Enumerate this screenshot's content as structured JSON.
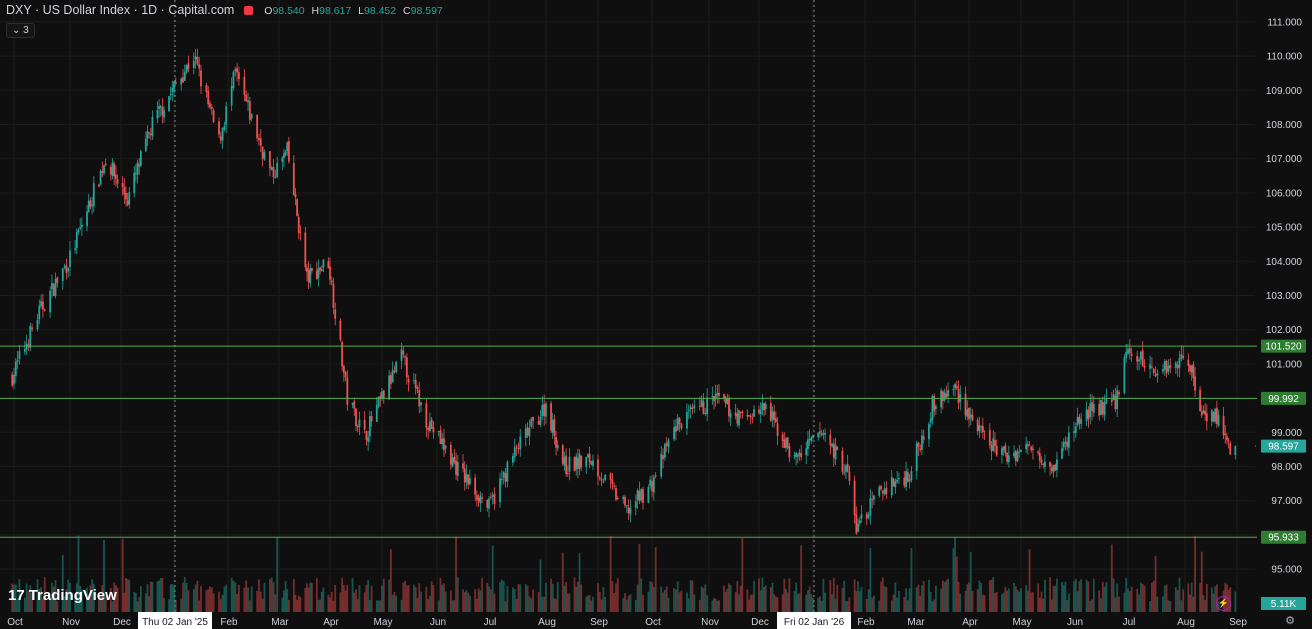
{
  "header": {
    "title": "DXY · US Dollar Index · 1D · Capital.com",
    "ohlc": [
      {
        "k": "O",
        "v": "98.540"
      },
      {
        "k": "H",
        "v": "98.617"
      },
      {
        "k": "L",
        "v": "98.452"
      },
      {
        "k": "C",
        "v": "98.597"
      }
    ],
    "indicator_badge": "3"
  },
  "branding": {
    "logo_text": "TradingView",
    "logo_mark": "17"
  },
  "colors": {
    "background": "#0f0f0f",
    "grid": "#1c1c1c",
    "up": "#26a69a",
    "down": "#ef5350",
    "level_line": "#4caf50",
    "axis_text": "#d1d4dc"
  },
  "icons": {
    "settings": "gear-icon",
    "alert": "bolt-icon"
  },
  "chart_data": {
    "type": "candlestick",
    "ylim": [
      94.3,
      111.4
    ],
    "y_ticks": [
      "95.000",
      "96.000",
      "97.000",
      "98.000",
      "99.000",
      "100.000",
      "101.000",
      "102.000",
      "103.000",
      "104.000",
      "105.000",
      "106.000",
      "107.000",
      "108.000",
      "109.000",
      "110.000",
      "111.000"
    ],
    "x_ticks": [
      "Oct",
      "Nov",
      "Dec",
      "Thu 02 Jan '25",
      "Feb",
      "Mar",
      "Apr",
      "May",
      "Jun",
      "Jul",
      "Aug",
      "Sep",
      "Oct",
      "Nov",
      "Dec",
      "Fri 02 Jan '26",
      "Feb",
      "Mar",
      "Apr",
      "May",
      "Jun",
      "Jul",
      "Aug",
      "Sep"
    ],
    "highlighted_x_ticks": [
      "Thu 02 Jan '25",
      "Fri 02 Jan '26"
    ],
    "last_price": "98.597",
    "volume_last": "5.11K",
    "horizontal_levels": [
      {
        "value": 101.52,
        "label": "101.520"
      },
      {
        "value": 99.992,
        "label": "99.992"
      },
      {
        "value": 95.933,
        "label": "95.933"
      }
    ],
    "close_path": [
      {
        "date": "2024-09-28",
        "close": 100.4
      },
      {
        "date": "2024-10-15",
        "close": 102.5
      },
      {
        "date": "2024-11-01",
        "close": 104.1
      },
      {
        "date": "2024-11-22",
        "close": 107.0
      },
      {
        "date": "2024-12-05",
        "close": 105.8
      },
      {
        "date": "2024-12-20",
        "close": 108.0
      },
      {
        "date": "2025-01-13",
        "close": 110.0
      },
      {
        "date": "2025-01-27",
        "close": 107.5
      },
      {
        "date": "2025-02-05",
        "close": 109.5
      },
      {
        "date": "2025-02-25",
        "close": 106.5
      },
      {
        "date": "2025-03-06",
        "close": 107.2
      },
      {
        "date": "2025-03-18",
        "close": 103.5
      },
      {
        "date": "2025-03-31",
        "close": 104.0
      },
      {
        "date": "2025-04-11",
        "close": 100.0
      },
      {
        "date": "2025-04-21",
        "close": 98.9
      },
      {
        "date": "2025-05-12",
        "close": 101.2
      },
      {
        "date": "2025-05-26",
        "close": 99.4
      },
      {
        "date": "2025-06-12",
        "close": 98.0
      },
      {
        "date": "2025-07-01",
        "close": 96.8
      },
      {
        "date": "2025-07-16",
        "close": 98.5
      },
      {
        "date": "2025-08-01",
        "close": 99.8
      },
      {
        "date": "2025-08-12",
        "close": 98.0
      },
      {
        "date": "2025-08-28",
        "close": 98.2
      },
      {
        "date": "2025-09-17",
        "close": 96.7
      },
      {
        "date": "2025-10-01",
        "close": 97.5
      },
      {
        "date": "2025-10-14",
        "close": 99.2
      },
      {
        "date": "2025-11-05",
        "close": 100.0
      },
      {
        "date": "2025-11-20",
        "close": 99.4
      },
      {
        "date": "2025-12-05",
        "close": 99.7
      },
      {
        "date": "2025-12-22",
        "close": 98.2
      },
      {
        "date": "2026-01-08",
        "close": 99.0
      },
      {
        "date": "2026-01-22",
        "close": 97.8
      },
      {
        "date": "2026-01-27",
        "close": 96.2
      },
      {
        "date": "2026-02-10",
        "close": 97.3
      },
      {
        "date": "2026-02-26",
        "close": 97.8
      },
      {
        "date": "2026-03-11",
        "close": 99.8
      },
      {
        "date": "2026-03-24",
        "close": 100.3
      },
      {
        "date": "2026-04-08",
        "close": 98.9
      },
      {
        "date": "2026-04-22",
        "close": 98.3
      },
      {
        "date": "2026-05-08",
        "close": 98.6
      },
      {
        "date": "2026-05-20",
        "close": 98.0
      },
      {
        "date": "2026-06-05",
        "close": 99.5
      },
      {
        "date": "2026-06-24",
        "close": 99.9
      },
      {
        "date": "2026-07-01",
        "close": 101.4
      },
      {
        "date": "2026-07-15",
        "close": 100.8
      },
      {
        "date": "2026-08-03",
        "close": 101.2
      },
      {
        "date": "2026-08-10",
        "close": 99.7
      },
      {
        "date": "2026-08-21",
        "close": 99.4
      },
      {
        "date": "2026-08-28",
        "close": 98.4
      },
      {
        "date": "2026-08-31",
        "close": 98.597
      }
    ]
  }
}
